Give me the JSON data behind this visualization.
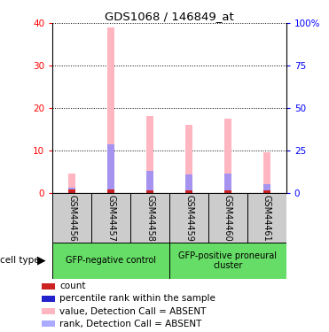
{
  "title": "GDS1068 / 146849_at",
  "samples": [
    "GSM44456",
    "GSM44457",
    "GSM44458",
    "GSM44459",
    "GSM44460",
    "GSM44461"
  ],
  "groups": [
    {
      "label": "GFP-negative control",
      "color": "#66DD66",
      "span": [
        0,
        3
      ]
    },
    {
      "label": "GFP-positive proneural\ncluster",
      "color": "#66DD66",
      "span": [
        3,
        6
      ]
    }
  ],
  "value_bars": [
    4.5,
    39.0,
    18.0,
    16.0,
    17.5,
    9.5
  ],
  "rank_bars": [
    1.2,
    11.5,
    5.2,
    4.2,
    4.5,
    2.0
  ],
  "count_values": [
    0.8,
    0.8,
    0.5,
    0.5,
    0.5,
    0.5
  ],
  "bar_color_pink": "#FFB6C1",
  "bar_color_blue": "#8888FF",
  "bar_color_red": "#CC2222",
  "ylim_left": [
    0,
    40
  ],
  "ylim_right": [
    0,
    100
  ],
  "yticks_left": [
    0,
    10,
    20,
    30,
    40
  ],
  "yticks_right": [
    0,
    25,
    50,
    75,
    100
  ],
  "ytick_labels_right": [
    "0",
    "25",
    "50",
    "75",
    "100%"
  ],
  "legend_items": [
    {
      "color": "#CC2222",
      "label": "count"
    },
    {
      "color": "#2222CC",
      "label": "percentile rank within the sample"
    },
    {
      "color": "#FFB6C1",
      "label": "value, Detection Call = ABSENT"
    },
    {
      "color": "#AAAAFF",
      "label": "rank, Detection Call = ABSENT"
    }
  ],
  "cell_type_label": "cell type",
  "bar_width": 0.18
}
